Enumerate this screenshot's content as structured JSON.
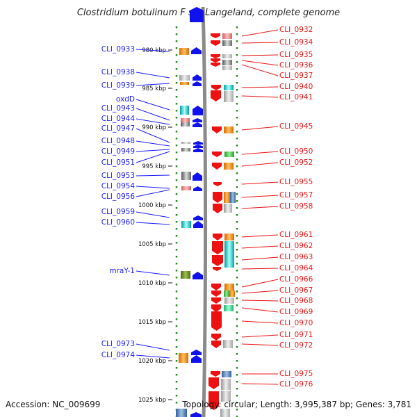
{
  "title": "Clostridium botulinum F str. Langeland, complete genome",
  "accession": "Accession: NC_009699",
  "summary": "Topology: circular; Length: 3,995,387 bp; Genes: 3,781",
  "scale_ticks": [
    "980 kbp",
    "985 kbp",
    "990 kbp",
    "995 kbp",
    "1000 kbp",
    "1005 kbp",
    "1010 kbp",
    "1015 kbp",
    "1020 kbp",
    "1025 kbp"
  ],
  "left_labels": [
    "CLI_0933",
    "CLI_0938",
    "CLI_0939",
    "oxdD",
    "CLI_0943",
    "CLI_0944",
    "CLI_0947",
    "CLI_0948",
    "CLI_0949",
    "CLI_0951",
    "CLI_0953",
    "CLI_0954",
    "CLI_0956",
    "CLI_0959",
    "CLI_0960",
    "mraY-1",
    "CLI_0973",
    "CLI_0974"
  ],
  "right_labels": [
    "CLI_0932",
    "CLI_0934",
    "CLI_0935",
    "CLI_0936",
    "CLI_0937",
    "CLI_0940",
    "CLI_0941",
    "CLI_0945",
    "CLI_0950",
    "CLI_0952",
    "CLI_0955",
    "CLI_0957",
    "CLI_0958",
    "CLI_0961",
    "CLI_0962",
    "CLI_0963",
    "CLI_0964",
    "CLI_0966",
    "CLI_0967",
    "CLI_0968",
    "CLI_0969",
    "CLI_0970",
    "CLI_0971",
    "CLI_0972",
    "CLI_0975",
    "CLI_0976"
  ],
  "colors": {
    "forward_strand": "#1111ee",
    "reverse_strand": "#ee1111",
    "backbone": "#888888",
    "tick": "#1a8a1a"
  }
}
